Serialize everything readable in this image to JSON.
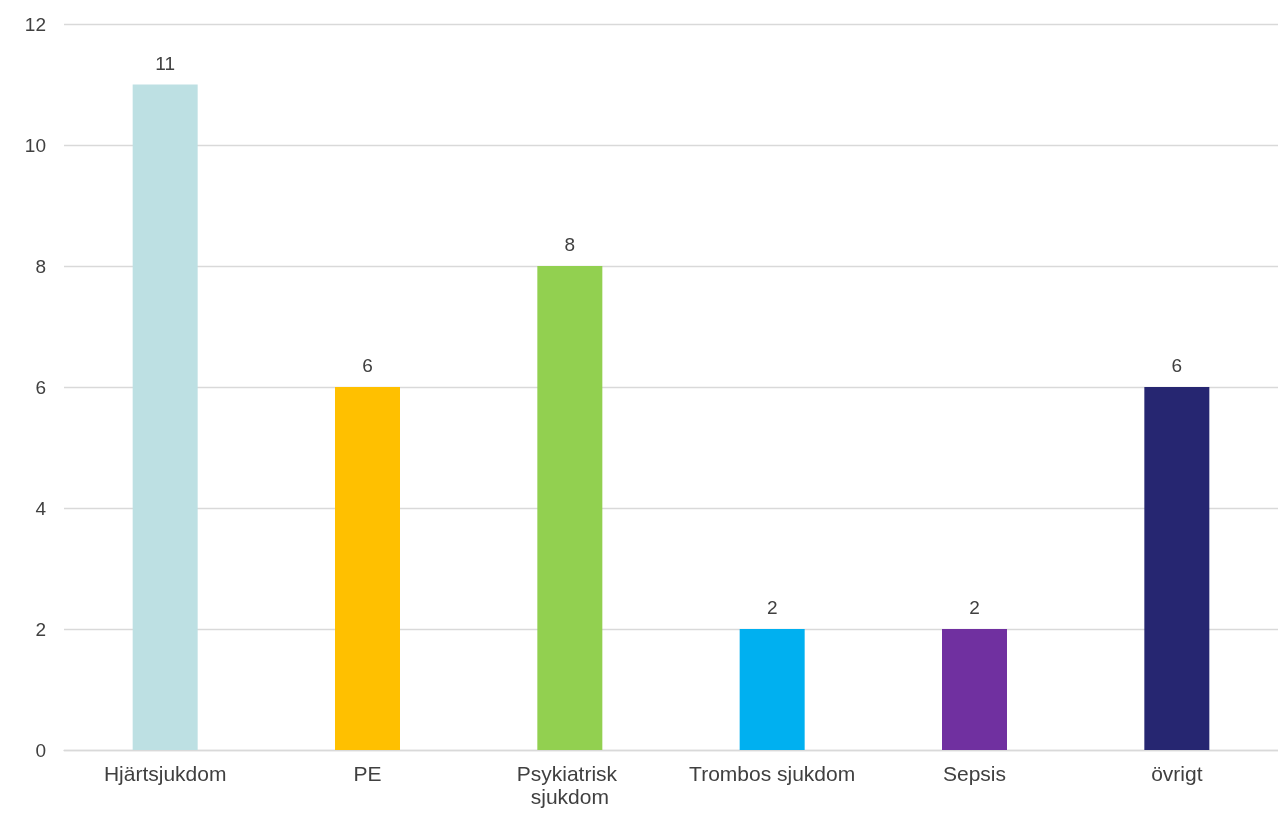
{
  "chart_data": {
    "type": "bar",
    "categories": [
      "Hjärtsjukdom",
      "PE",
      "Psykiatrisk sjukdom",
      "Trombos sjukdom",
      "Sepsis",
      "övrigt"
    ],
    "values": [
      11,
      6,
      8,
      2,
      2,
      6
    ],
    "colors": [
      "#bde0e3",
      "#ffc000",
      "#92d050",
      "#00b0f0",
      "#7030a0",
      "#262671"
    ],
    "ylim": [
      0,
      12
    ],
    "yticks": [
      0,
      2,
      4,
      6,
      8,
      10,
      12
    ],
    "grid": "y",
    "data_labels": true
  }
}
